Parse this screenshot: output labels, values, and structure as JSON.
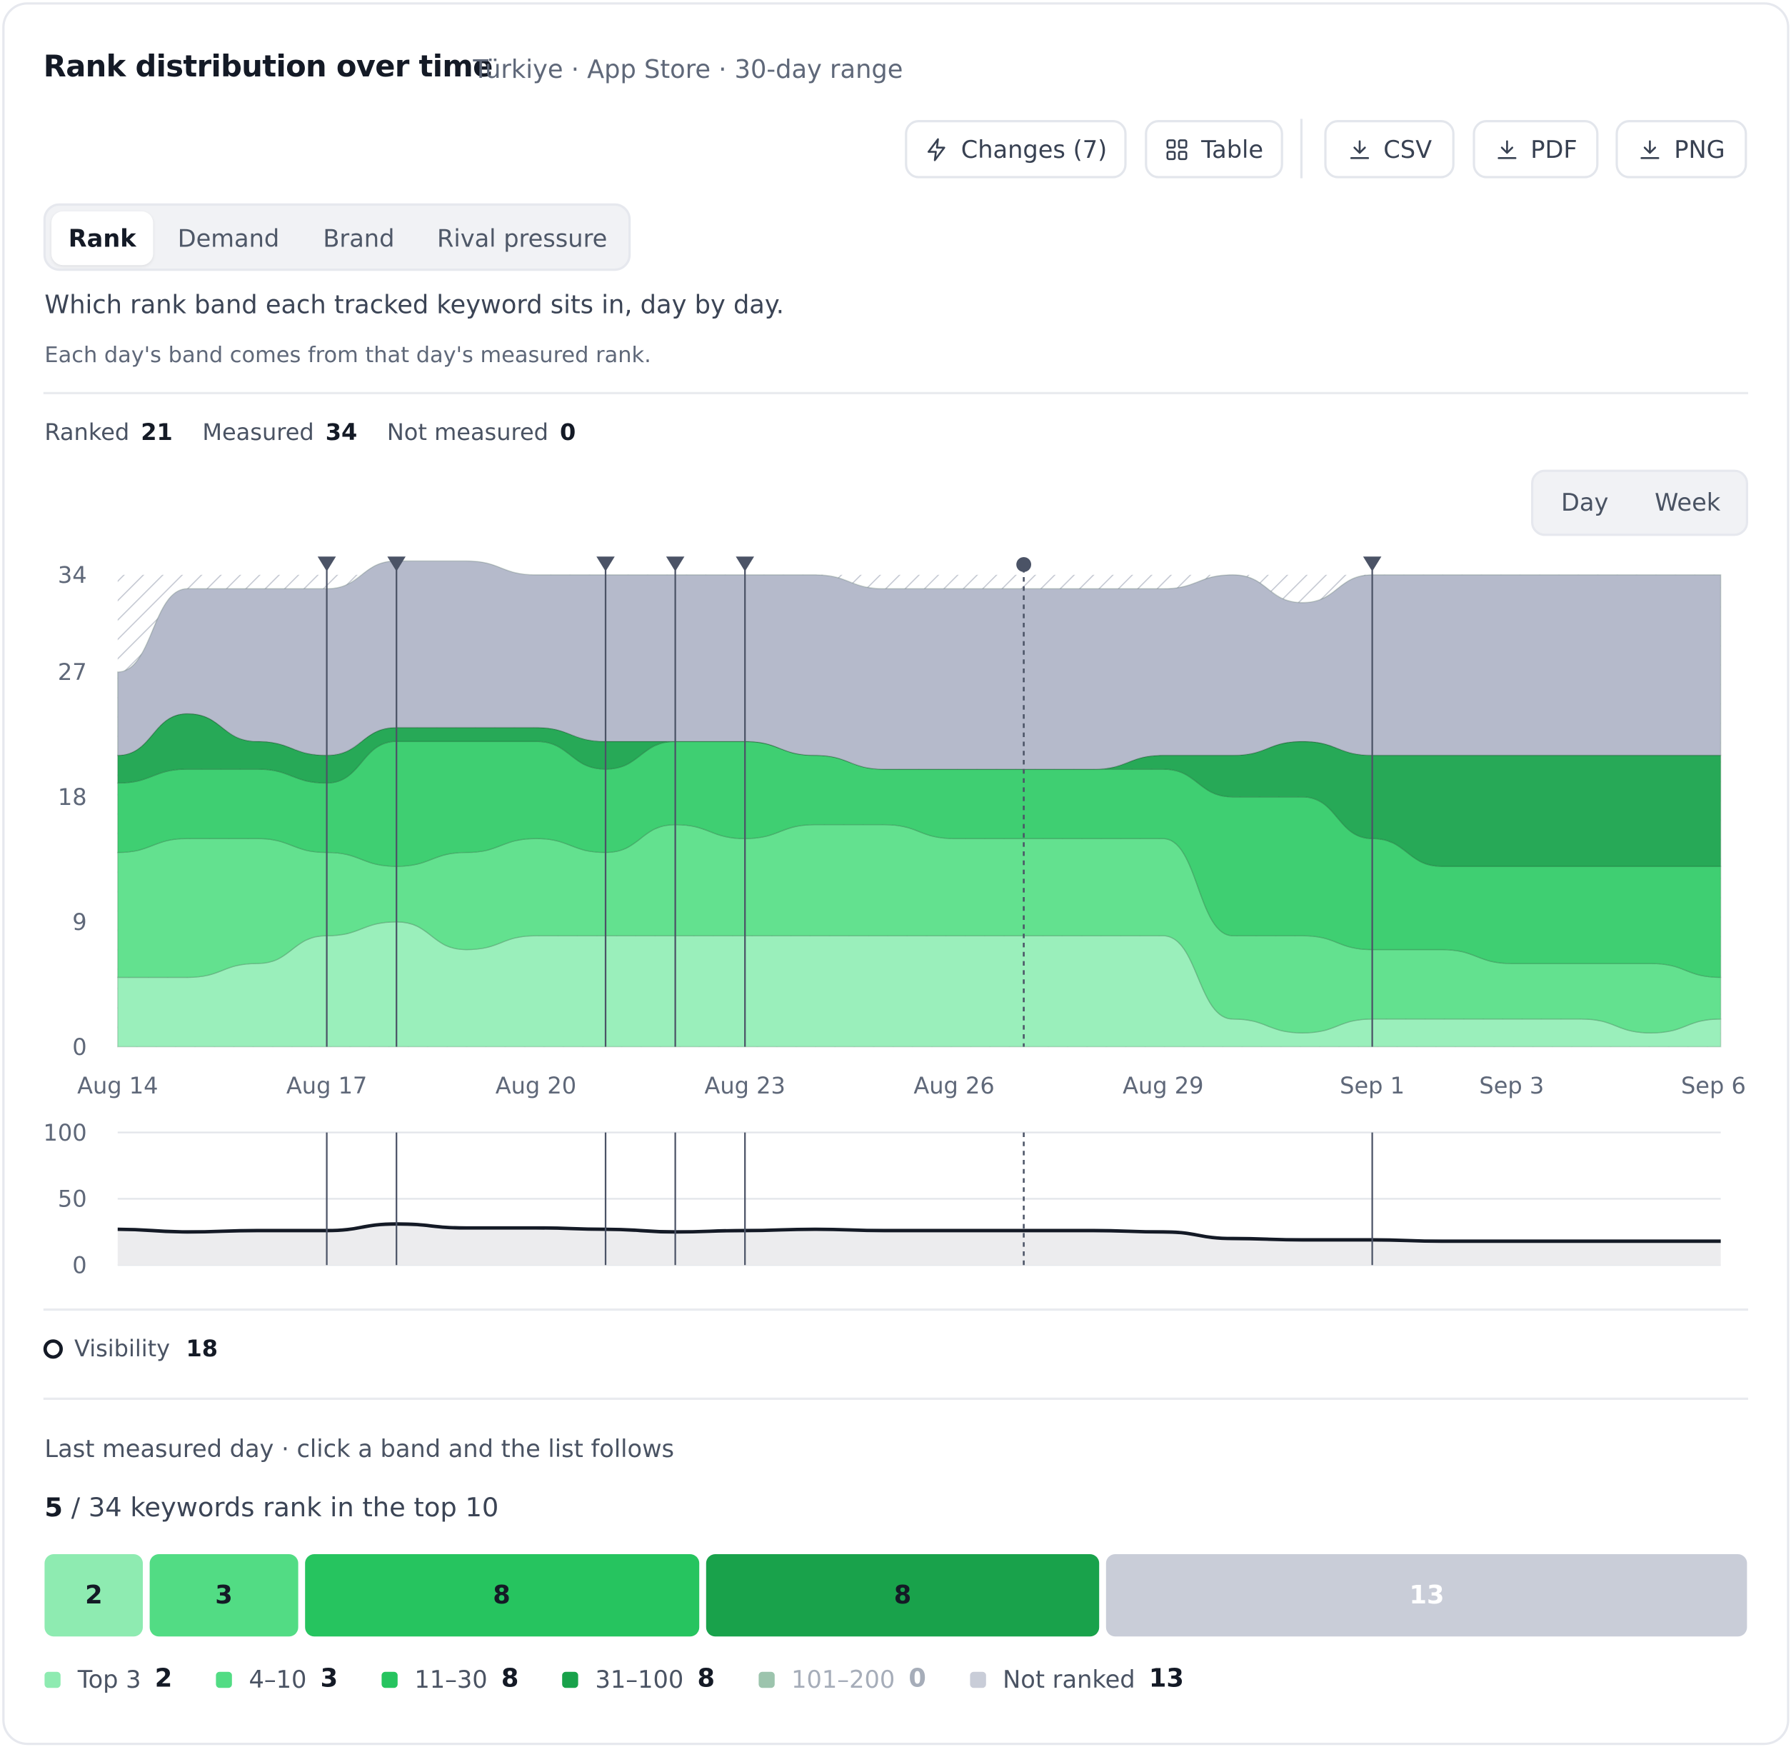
{
  "header": {
    "title": "Rank distribution over time",
    "subtitle": "Türkiye · App Store · 30-day range"
  },
  "toolbar": {
    "changes_label": "Changes (7)",
    "table_label": "Table",
    "csv_label": "CSV",
    "pdf_label": "PDF",
    "png_label": "PNG"
  },
  "tabs": [
    {
      "label": "Rank",
      "active": true
    },
    {
      "label": "Demand",
      "active": false
    },
    {
      "label": "Brand",
      "active": false
    },
    {
      "label": "Rival pressure",
      "active": false
    }
  ],
  "description": "Which rank band each tracked keyword sits in, day by day.",
  "note": "Each day's band comes from that day's measured rank.",
  "stats": {
    "ranked_label": "Ranked",
    "ranked_value": "21",
    "measured_label": "Measured",
    "measured_value": "34",
    "not_measured_label": "Not measured",
    "not_measured_value": "0"
  },
  "granularity": {
    "options": [
      "Day",
      "Week"
    ],
    "selected": "Day"
  },
  "colors": {
    "top3": "#9aefbb",
    "r4_10": "#63e18f",
    "r11_30": "#3fcf72",
    "r31_100": "#27a957",
    "r101_200": "#9cc4ad",
    "not_ranked": "#b5bacb",
    "marker": "#4b5366",
    "visibility_line": "#141a26"
  },
  "chart_data": [
    {
      "type": "area",
      "stacked": true,
      "x": [
        "Aug 14",
        "Aug 15",
        "Aug 16",
        "Aug 17",
        "Aug 18",
        "Aug 19",
        "Aug 20",
        "Aug 21",
        "Aug 22",
        "Aug 23",
        "Aug 24",
        "Aug 25",
        "Aug 26",
        "Aug 27",
        "Aug 28",
        "Aug 29",
        "Aug 30",
        "Aug 31",
        "Sep 1",
        "Sep 2",
        "Sep 3",
        "Sep 4",
        "Sep 5",
        "Sep 6"
      ],
      "x_tick_labels": [
        "Aug 14",
        "Aug 17",
        "Aug 20",
        "Aug 23",
        "Aug 26",
        "Aug 29",
        "Sep 1",
        "Sep 3",
        "Sep 6"
      ],
      "ylim": [
        0,
        34
      ],
      "y_ticks": [
        0,
        9,
        18,
        27,
        34
      ],
      "series": [
        {
          "name": "Top 3",
          "color": "#9aefbb",
          "values": [
            5,
            5,
            6,
            8,
            9,
            7,
            8,
            8,
            8,
            8,
            8,
            8,
            8,
            8,
            8,
            8,
            2,
            1,
            2,
            2,
            2,
            2,
            1,
            2
          ]
        },
        {
          "name": "4–10",
          "color": "#63e18f",
          "values": [
            9,
            10,
            9,
            6,
            4,
            7,
            7,
            6,
            8,
            7,
            8,
            8,
            7,
            7,
            7,
            7,
            6,
            7,
            5,
            5,
            4,
            4,
            5,
            3
          ]
        },
        {
          "name": "11–30",
          "color": "#3fcf72",
          "values": [
            5,
            5,
            5,
            5,
            9,
            8,
            7,
            6,
            6,
            7,
            5,
            4,
            5,
            5,
            5,
            5,
            10,
            10,
            8,
            6,
            7,
            7,
            7,
            8
          ]
        },
        {
          "name": "31–100",
          "color": "#27a957",
          "values": [
            2,
            4,
            2,
            2,
            1,
            1,
            1,
            2,
            0,
            0,
            0,
            0,
            0,
            0,
            0,
            1,
            3,
            4,
            6,
            8,
            8,
            8,
            8,
            8
          ]
        },
        {
          "name": "101–200",
          "color": "#9cc4ad",
          "values": [
            0,
            0,
            0,
            0,
            0,
            0,
            0,
            0,
            0,
            0,
            0,
            0,
            0,
            0,
            0,
            0,
            0,
            0,
            0,
            0,
            0,
            0,
            0,
            0
          ]
        },
        {
          "name": "Not ranked",
          "color": "#b5bacb",
          "values": [
            6,
            9,
            11,
            12,
            12,
            12,
            11,
            12,
            12,
            12,
            13,
            13,
            13,
            13,
            13,
            12,
            13,
            10,
            13,
            13,
            13,
            13,
            13,
            13
          ]
        }
      ],
      "events": [
        {
          "x": "Aug 17",
          "kind": "change"
        },
        {
          "x": "Aug 18",
          "kind": "change"
        },
        {
          "x": "Aug 21",
          "kind": "change"
        },
        {
          "x": "Aug 22",
          "kind": "change"
        },
        {
          "x": "Aug 23",
          "kind": "change"
        },
        {
          "x": "Aug 27",
          "kind": "dot"
        },
        {
          "x": "Sep 1",
          "kind": "change"
        }
      ]
    },
    {
      "type": "line",
      "name": "Visibility",
      "x": [
        "Aug 14",
        "Aug 15",
        "Aug 16",
        "Aug 17",
        "Aug 18",
        "Aug 19",
        "Aug 20",
        "Aug 21",
        "Aug 22",
        "Aug 23",
        "Aug 24",
        "Aug 25",
        "Aug 26",
        "Aug 27",
        "Aug 28",
        "Aug 29",
        "Aug 30",
        "Aug 31",
        "Sep 1",
        "Sep 2",
        "Sep 3",
        "Sep 4",
        "Sep 5",
        "Sep 6"
      ],
      "values": [
        27,
        25,
        26,
        26,
        31,
        28,
        28,
        27,
        25,
        26,
        27,
        26,
        26,
        26,
        26,
        25,
        20,
        19,
        19,
        18,
        18,
        18,
        18,
        18
      ],
      "ylim": [
        0,
        100
      ],
      "y_ticks": [
        0,
        50,
        100
      ]
    }
  ],
  "visibility_legend": {
    "label": "Visibility",
    "value": "18"
  },
  "distribution": {
    "caption": "Last measured day · click a band and the list follows",
    "top10_count": "5",
    "top10_rest": "/ 34 keywords rank in the top 10",
    "bands": [
      {
        "name": "Top 3",
        "count": 2,
        "color": "#8eebb1"
      },
      {
        "name": "4–10",
        "count": 3,
        "color": "#52dc84"
      },
      {
        "name": "11–30",
        "count": 8,
        "color": "#26c45f"
      },
      {
        "name": "31–100",
        "count": 8,
        "color": "#19a24b"
      },
      {
        "name": "101–200",
        "count": 0,
        "color": "#9cc4ad"
      },
      {
        "name": "Not ranked",
        "count": 13,
        "color": "#c9cdd8"
      }
    ]
  }
}
